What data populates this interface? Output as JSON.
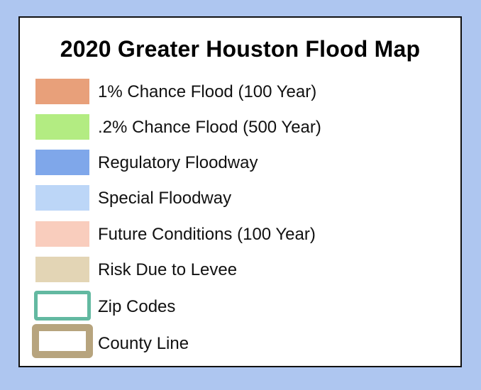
{
  "legend": {
    "title": "2020 Greater Houston Flood Map",
    "items": [
      {
        "label": "1% Chance Flood (100 Year)",
        "color": "#e8a07a",
        "style": "fill"
      },
      {
        "label": ".2% Chance Flood (500 Year)",
        "color": "#b3ec82",
        "style": "fill"
      },
      {
        "label": "Regulatory Floodway",
        "color": "#7fa7ea",
        "style": "fill"
      },
      {
        "label": "Special Floodway",
        "color": "#bcd6f7",
        "style": "fill"
      },
      {
        "label": "Future Conditions (100 Year)",
        "color": "#f9cdbd",
        "style": "fill"
      },
      {
        "label": "Risk Due to Levee",
        "color": "#e3d5b5",
        "style": "fill"
      },
      {
        "label": "Zip Codes",
        "color": "#63b9a1",
        "style": "outline"
      },
      {
        "label": "County Line",
        "color": "#b7a47e",
        "style": "outline-thick"
      }
    ]
  }
}
